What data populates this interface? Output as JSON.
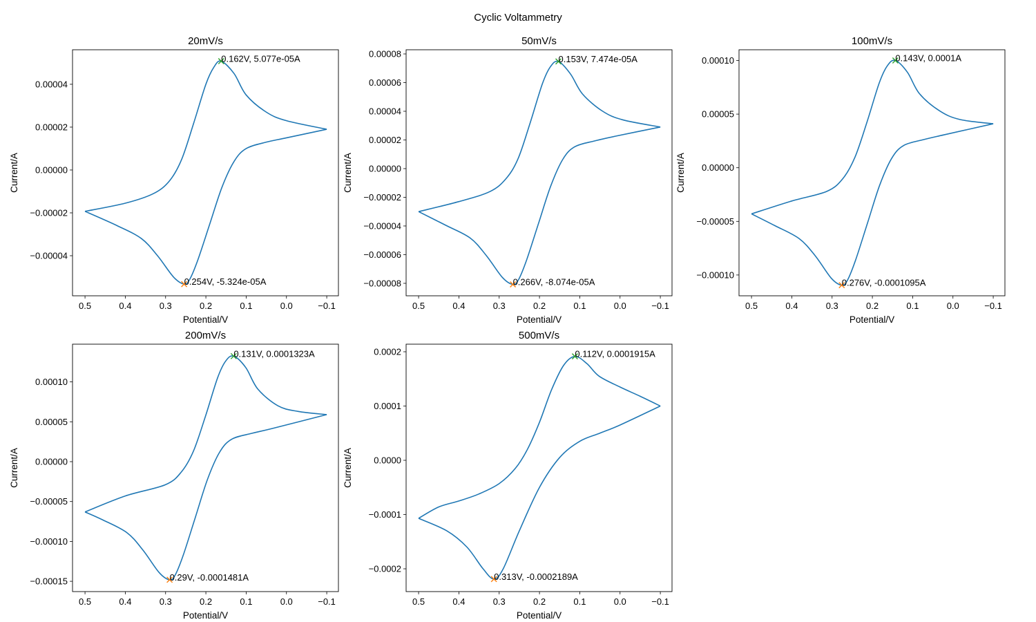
{
  "chart_data": {
    "title": "Cyclic Voltammetry",
    "type": "line",
    "line_color": "#1f77b4",
    "oxidation_marker_color": "#2ca02c",
    "reduction_marker_color": "#ff7f0e",
    "marker": "x",
    "grid": false,
    "legend": "none",
    "subplots": [
      {
        "title": "20mV/s",
        "xlabel": "Potential/V",
        "ylabel": "Current/A",
        "xlim": [
          0.531,
          -0.129
        ],
        "ylim": [
          -5.87e-05,
          5.61e-05
        ],
        "xticks": [
          0.5,
          0.4,
          0.3,
          0.2,
          0.1,
          0.0,
          -0.1
        ],
        "xtick_labels": [
          "0.5",
          "0.4",
          "0.3",
          "0.2",
          "0.1",
          "0.0",
          "−0.1"
        ],
        "yticks": [
          4e-05,
          2e-05,
          0,
          -2e-05,
          -4e-05
        ],
        "ytick_labels": [
          "0.00004",
          "0.00002",
          "0.00000",
          "−0.00002",
          "−0.00004"
        ],
        "upper_branch": [
          [
            0.5,
            -1.93e-05
          ],
          [
            0.4,
            -1.55e-05
          ],
          [
            0.33,
            -1.1e-05
          ],
          [
            0.29,
            -5e-06
          ],
          [
            0.26,
            5e-06
          ],
          [
            0.23,
            2.2e-05
          ],
          [
            0.2,
            4e-05
          ],
          [
            0.18,
            4.8e-05
          ],
          [
            0.162,
            5.077e-05
          ],
          [
            0.13,
            4.5e-05
          ],
          [
            0.1,
            3.5e-05
          ],
          [
            0.05,
            2.7e-05
          ],
          [
            0.0,
            2.3e-05
          ],
          [
            -0.1,
            1.9e-05
          ]
        ],
        "lower_branch": [
          [
            -0.1,
            1.9e-05
          ],
          [
            0.0,
            1.5e-05
          ],
          [
            0.05,
            1.3e-05
          ],
          [
            0.1,
            1e-05
          ],
          [
            0.13,
            4e-06
          ],
          [
            0.16,
            -8e-06
          ],
          [
            0.19,
            -2.5e-05
          ],
          [
            0.22,
            -4.2e-05
          ],
          [
            0.24,
            -5.1e-05
          ],
          [
            0.254,
            -5.324e-05
          ],
          [
            0.28,
            -5e-05
          ],
          [
            0.32,
            -4e-05
          ],
          [
            0.36,
            -3.2e-05
          ],
          [
            0.42,
            -2.6e-05
          ],
          [
            0.5,
            -1.93e-05
          ]
        ],
        "oxidation_peak": {
          "x": 0.162,
          "y": 5.077e-05,
          "label": "0.162V, 5.077e-05A"
        },
        "reduction_peak": {
          "x": 0.254,
          "y": -5.324e-05,
          "label": "0.254V, -5.324e-05A"
        }
      },
      {
        "title": "50mV/s",
        "xlabel": "Potential/V",
        "ylabel": "Current/A",
        "xlim": [
          0.531,
          -0.129
        ],
        "ylim": [
          -8.87e-05,
          8.29e-05
        ],
        "xticks": [
          0.5,
          0.4,
          0.3,
          0.2,
          0.1,
          0.0,
          -0.1
        ],
        "xtick_labels": [
          "0.5",
          "0.4",
          "0.3",
          "0.2",
          "0.1",
          "0.0",
          "−0.1"
        ],
        "yticks": [
          8e-05,
          6e-05,
          4e-05,
          2e-05,
          0,
          -2e-05,
          -4e-05,
          -6e-05,
          -8e-05
        ],
        "ytick_labels": [
          "0.00008",
          "0.00006",
          "0.00004",
          "0.00002",
          "0.00000",
          "−0.00002",
          "−0.00004",
          "−0.00006",
          "−0.00008"
        ],
        "upper_branch": [
          [
            0.5,
            -3e-05
          ],
          [
            0.4,
            -2.3e-05
          ],
          [
            0.323,
            -1.6e-05
          ],
          [
            0.283,
            -7e-06
          ],
          [
            0.253,
            7e-06
          ],
          [
            0.223,
            3.2e-05
          ],
          [
            0.193,
            5.9e-05
          ],
          [
            0.173,
            7.1e-05
          ],
          [
            0.153,
            7.474e-05
          ],
          [
            0.123,
            6.6e-05
          ],
          [
            0.093,
            5.2e-05
          ],
          [
            0.043,
            4e-05
          ],
          [
            -0.007,
            3.4e-05
          ],
          [
            -0.1,
            2.9e-05
          ]
        ],
        "lower_branch": [
          [
            -0.1,
            2.9e-05
          ],
          [
            0.012,
            2.26e-05
          ],
          [
            0.062,
            1.94e-05
          ],
          [
            0.112,
            1.53e-05
          ],
          [
            0.142,
            6.5e-06
          ],
          [
            0.172,
            -1.21e-05
          ],
          [
            0.202,
            -3.79e-05
          ],
          [
            0.232,
            -6.38e-05
          ],
          [
            0.252,
            -7.75e-05
          ],
          [
            0.266,
            -8.074e-05
          ],
          [
            0.292,
            -7.59e-05
          ],
          [
            0.332,
            -6.06e-05
          ],
          [
            0.372,
            -4.84e-05
          ],
          [
            0.432,
            -3.96e-05
          ],
          [
            0.5,
            -3e-05
          ]
        ],
        "oxidation_peak": {
          "x": 0.153,
          "y": 7.474e-05,
          "label": "0.153V, 7.474e-05A"
        },
        "reduction_peak": {
          "x": 0.266,
          "y": -8.074e-05,
          "label": "0.266V, -8.074e-05A"
        }
      },
      {
        "title": "100mV/s",
        "xlabel": "Potential/V",
        "ylabel": "Current/A",
        "xlim": [
          0.531,
          -0.129
        ],
        "ylim": [
          -0.0001194,
          0.00011
        ],
        "xticks": [
          0.5,
          0.4,
          0.3,
          0.2,
          0.1,
          0.0,
          -0.1
        ],
        "xtick_labels": [
          "0.5",
          "0.4",
          "0.3",
          "0.2",
          "0.1",
          "0.0",
          "−0.1"
        ],
        "yticks": [
          0.0001,
          5e-05,
          0,
          -5e-05,
          -0.0001
        ],
        "ytick_labels": [
          "0.00010",
          "0.00005",
          "0.00000",
          "−0.00005",
          "−0.00010"
        ],
        "upper_branch": [
          [
            0.5,
            -4.3e-05
          ],
          [
            0.4,
            -3.1e-05
          ],
          [
            0.313,
            -2.2e-05
          ],
          [
            0.273,
            -1e-05
          ],
          [
            0.243,
            1e-05
          ],
          [
            0.213,
            4.3e-05
          ],
          [
            0.183,
            7.9e-05
          ],
          [
            0.163,
            9.5e-05
          ],
          [
            0.143,
            0.0001
          ],
          [
            0.113,
            8.9e-05
          ],
          [
            0.083,
            6.9e-05
          ],
          [
            0.033,
            5.3e-05
          ],
          [
            -0.017,
            4.5e-05
          ],
          [
            -0.1,
            4.1e-05
          ]
        ],
        "lower_branch": [
          [
            -0.1,
            4.1e-05
          ],
          [
            0.022,
            3.07e-05
          ],
          [
            0.072,
            2.63e-05
          ],
          [
            0.122,
            2.08e-05
          ],
          [
            0.152,
            8.8e-06
          ],
          [
            0.182,
            -1.64e-05
          ],
          [
            0.212,
            -5.15e-05
          ],
          [
            0.242,
            -8.65e-05
          ],
          [
            0.262,
            -0.000105
          ],
          [
            0.276,
            -0.0001095
          ],
          [
            0.302,
            -0.000103
          ],
          [
            0.342,
            -8.2e-05
          ],
          [
            0.382,
            -6.6e-05
          ],
          [
            0.442,
            -5.4e-05
          ],
          [
            0.5,
            -4.3e-05
          ]
        ],
        "oxidation_peak": {
          "x": 0.143,
          "y": 0.0001,
          "label": "0.143V, 0.0001A"
        },
        "reduction_peak": {
          "x": 0.276,
          "y": -0.0001095,
          "label": "0.276V, -0.0001095A"
        }
      },
      {
        "title": "200mV/s",
        "xlabel": "Potential/V",
        "ylabel": "Current/A",
        "xlim": [
          0.531,
          -0.129
        ],
        "ylim": [
          -0.0001629,
          0.0001473
        ],
        "xticks": [
          0.5,
          0.4,
          0.3,
          0.2,
          0.1,
          0.0,
          -0.1
        ],
        "xtick_labels": [
          "0.5",
          "0.4",
          "0.3",
          "0.2",
          "0.1",
          "0.0",
          "−0.1"
        ],
        "yticks": [
          0.0001,
          5e-05,
          0,
          -5e-05,
          -0.0001,
          -0.00015
        ],
        "ytick_labels": [
          "0.00010",
          "0.00005",
          "0.00000",
          "−0.00005",
          "−0.00010",
          "−0.00015"
        ],
        "upper_branch": [
          [
            0.5,
            -6.3e-05
          ],
          [
            0.4,
            -4.3e-05
          ],
          [
            0.301,
            -2.9e-05
          ],
          [
            0.261,
            -1.3e-05
          ],
          [
            0.231,
            1.3e-05
          ],
          [
            0.201,
            5.7e-05
          ],
          [
            0.171,
            0.000105
          ],
          [
            0.151,
            0.000126
          ],
          [
            0.131,
            0.0001323
          ],
          [
            0.101,
            0.000118
          ],
          [
            0.071,
            9.1e-05
          ],
          [
            0.021,
            7e-05
          ],
          [
            -0.029,
            6.3e-05
          ],
          [
            -0.1,
            5.9e-05
          ]
        ],
        "lower_branch": [
          [
            -0.1,
            5.9e-05
          ],
          [
            0.036,
            4.15e-05
          ],
          [
            0.086,
            3.55e-05
          ],
          [
            0.136,
            2.81e-05
          ],
          [
            0.166,
            1.18e-05
          ],
          [
            0.196,
            -2.22e-05
          ],
          [
            0.226,
            -6.96e-05
          ],
          [
            0.256,
            -0.000117
          ],
          [
            0.276,
            -0.000142
          ],
          [
            0.29,
            -0.0001481
          ],
          [
            0.316,
            -0.000139
          ],
          [
            0.356,
            -0.000111
          ],
          [
            0.396,
            -8.9e-05
          ],
          [
            0.456,
            -7.3e-05
          ],
          [
            0.5,
            -6.3e-05
          ]
        ],
        "oxidation_peak": {
          "x": 0.131,
          "y": 0.0001323,
          "label": "0.131V, 0.0001323A"
        },
        "reduction_peak": {
          "x": 0.29,
          "y": -0.0001481,
          "label": "0.29V, -0.0001481A"
        }
      },
      {
        "title": "500mV/s",
        "xlabel": "Potential/V",
        "ylabel": "Current/A",
        "xlim": [
          0.531,
          -0.129
        ],
        "ylim": [
          -0.000242,
          0.000214
        ],
        "xticks": [
          0.5,
          0.4,
          0.3,
          0.2,
          0.1,
          0.0,
          -0.1
        ],
        "xtick_labels": [
          "0.5",
          "0.4",
          "0.3",
          "0.2",
          "0.1",
          "0.0",
          "−0.1"
        ],
        "yticks": [
          0.0002,
          0.0001,
          0,
          -0.0001,
          -0.0002
        ],
        "ytick_labels": [
          "0.0002",
          "0.0001",
          "0.0000",
          "−0.0001",
          "−0.0002"
        ],
        "upper_branch": [
          [
            0.5,
            -0.000107
          ],
          [
            0.45,
            -8.6e-05
          ],
          [
            0.4,
            -7.5e-05
          ],
          [
            0.35,
            -6.2e-05
          ],
          [
            0.3,
            -4.3e-05
          ],
          [
            0.26,
            -1.5e-05
          ],
          [
            0.23,
            2e-05
          ],
          [
            0.2,
            7e-05
          ],
          [
            0.17,
            0.00013
          ],
          [
            0.14,
            0.000175
          ],
          [
            0.112,
            0.0001915
          ],
          [
            0.082,
            0.000178
          ],
          [
            0.052,
            0.000155
          ],
          [
            0.0,
            0.000135
          ],
          [
            -0.05,
            0.000118
          ],
          [
            -0.1,
            0.0001
          ]
        ],
        "lower_branch": [
          [
            -0.1,
            0.0001
          ],
          [
            0.0,
            6.5e-05
          ],
          [
            0.05,
            5e-05
          ],
          [
            0.1,
            3.5e-05
          ],
          [
            0.15,
            5e-06
          ],
          [
            0.2,
            -5e-05
          ],
          [
            0.25,
            -0.00013
          ],
          [
            0.29,
            -0.0002
          ],
          [
            0.313,
            -0.0002189
          ],
          [
            0.34,
            -0.0002
          ],
          [
            0.38,
            -0.00016
          ],
          [
            0.43,
            -0.00013
          ],
          [
            0.5,
            -0.000107
          ]
        ],
        "oxidation_peak": {
          "x": 0.112,
          "y": 0.0001915,
          "label": "0.112V, 0.0001915A"
        },
        "reduction_peak": {
          "x": 0.313,
          "y": -0.0002189,
          "label": "0.313V, -0.0002189A"
        }
      }
    ]
  }
}
